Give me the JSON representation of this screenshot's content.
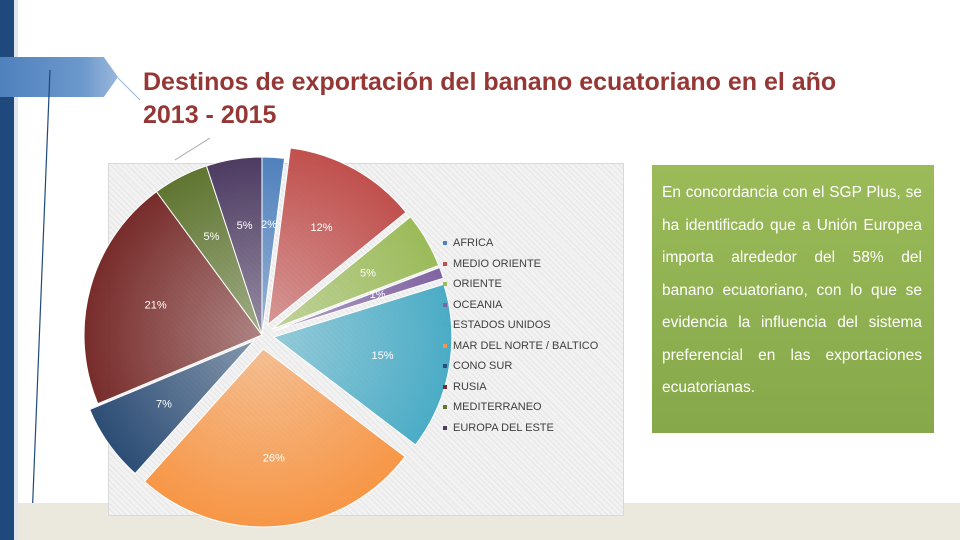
{
  "title": "Destinos de exportación del banano ecuatoriano en el año 2013 - 2015",
  "note": {
    "text": "En concordancia con el SGP Plus, se ha identificado que a Unión Europea importa alrededor del 58% del banano ecuatoriano, con lo que se evidencia la influencia del sistema preferencial en las exportaciones ecuatorianas."
  },
  "chart_data": {
    "type": "pie",
    "title": "",
    "start_angle_deg": 0,
    "direction": "clockwise",
    "legend_position": "right",
    "slices": [
      {
        "label": "AFRICA",
        "value": 2,
        "data_label": "2%",
        "color": "#4f81bd"
      },
      {
        "label": "MEDIO ORIENTE",
        "value": 12,
        "data_label": "12%",
        "color": "#c0504d"
      },
      {
        "label": "ORIENTE",
        "value": 5,
        "data_label": "5%",
        "color": "#9bbb59"
      },
      {
        "label": "OCEANIA",
        "value": 1,
        "data_label": "1%",
        "color": "#8064a2"
      },
      {
        "label": "ESTADOS UNIDOS",
        "value": 15,
        "data_label": "15%",
        "color": "#4bacc6"
      },
      {
        "label": "MAR DEL NORTE / BALTICO",
        "value": 26,
        "data_label": "26%",
        "color": "#f79646"
      },
      {
        "label": "CONO SUR",
        "value": 7,
        "data_label": "7%",
        "color": "#2c4d75"
      },
      {
        "label": "RUSIA",
        "value": 21,
        "data_label": "21%",
        "color": "#772c2a"
      },
      {
        "label": "MEDITERRANEO",
        "value": 5,
        "data_label": "5%",
        "color": "#5f7530"
      },
      {
        "label": "EUROPA DEL ESTE",
        "value": 5,
        "data_label": "5%",
        "color": "#4d3b62"
      }
    ]
  }
}
